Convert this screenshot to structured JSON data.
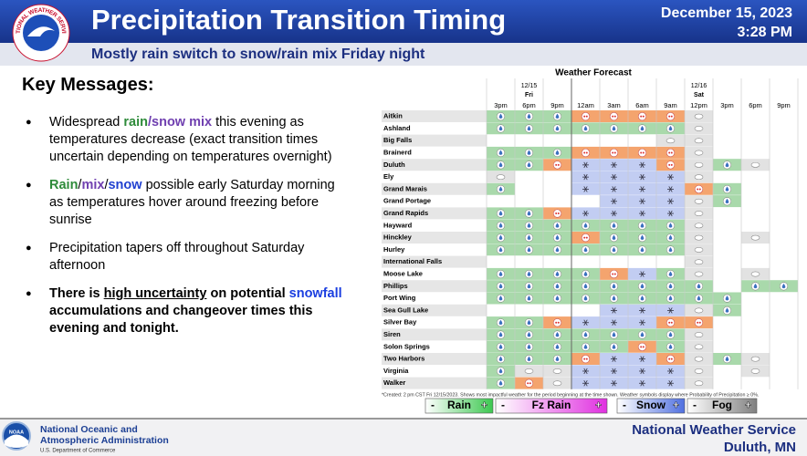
{
  "header": {
    "title": "Precipitation Transition Timing",
    "subtitle": "Mostly rain switch to snow/rain mix Friday night",
    "date": "December 15, 2023",
    "time": "3:28 PM",
    "logo_text": "NATIONAL WEATHER SERVICE"
  },
  "key_messages": {
    "heading": "Key Messages:",
    "bullet": "●",
    "items": [
      {
        "segments": [
          {
            "text": "Widespread "
          },
          {
            "text": "rain",
            "color": "#2e8b3a",
            "bold": true
          },
          {
            "text": "/snow mix",
            "color": "#7040b0",
            "bold": true
          },
          {
            "text": " this evening as temperatures decrease (exact transition times uncertain depending on temperatures overnight)"
          }
        ]
      },
      {
        "segments": [
          {
            "text": "Rain",
            "color": "#2e8b3a",
            "bold": true
          },
          {
            "text": "/"
          },
          {
            "text": "mix",
            "color": "#7040b0",
            "bold": true
          },
          {
            "text": "/"
          },
          {
            "text": "snow",
            "color": "#2040d0",
            "bold": true
          },
          {
            "text": " possible early Saturday morning as temperatures hover around freezing before sunrise"
          }
        ]
      },
      {
        "segments": [
          {
            "text": "Precipitation tapers off throughout Saturday afternoon"
          }
        ]
      },
      {
        "segments": [
          {
            "text": "There is ",
            "bold": true
          },
          {
            "text": "high uncertainty",
            "bold": true,
            "underline": true
          },
          {
            "text": " on potential ",
            "bold": true
          },
          {
            "text": "snowfall",
            "bold": true,
            "color": "#1a3ee0"
          },
          {
            "text": " accumulations and changeover times this evening and tonight.",
            "bold": true
          }
        ]
      }
    ]
  },
  "forecast": {
    "title": "Weather Forecast",
    "days": [
      {
        "date": "12/15",
        "day": "Fri"
      },
      {
        "date": "12/16",
        "day": "Sat"
      }
    ],
    "columns": [
      "3pm",
      "6pm",
      "9pm",
      "12am",
      "3am",
      "6am",
      "9am",
      "12pm",
      "3pm",
      "6pm",
      "9pm"
    ],
    "rows": [
      {
        "name": "Aitkin",
        "cells": [
          "Rain",
          "Rain",
          "Rain",
          "Fz Rain",
          "Fz Rain",
          "Fz Rain",
          "Fz Rain",
          "Fog",
          null,
          null,
          null
        ]
      },
      {
        "name": "Ashland",
        "cells": [
          "Rain",
          "Rain",
          "Rain",
          "Rain",
          "Rain",
          "Rain",
          "Rain",
          "Fog",
          null,
          null,
          null
        ]
      },
      {
        "name": "Big Falls",
        "cells": [
          null,
          null,
          null,
          null,
          null,
          null,
          "Fog",
          "Fog",
          null,
          null,
          null
        ]
      },
      {
        "name": "Brainerd",
        "cells": [
          "Rain",
          "Rain",
          "Rain",
          "Fz Rain",
          "Fz Rain",
          "Fz Rain",
          "Fz Rain",
          "Fog",
          null,
          null,
          null
        ]
      },
      {
        "name": "Duluth",
        "cells": [
          "Rain",
          "Rain",
          "Fz Rain",
          "Snow",
          "Snow",
          "Snow",
          "Fz Rain",
          "Fog",
          "Rain",
          "Fog",
          null
        ]
      },
      {
        "name": "Ely",
        "cells": [
          "Fog",
          null,
          null,
          "Snow",
          "Snow",
          "Snow",
          "Snow",
          "Fog",
          null,
          null,
          null
        ]
      },
      {
        "name": "Grand Marais",
        "cells": [
          "Rain",
          null,
          null,
          "Snow",
          "Snow",
          "Snow",
          "Snow",
          "Fz Rain",
          "Rain",
          null,
          null
        ]
      },
      {
        "name": "Grand Portage",
        "cells": [
          null,
          null,
          null,
          null,
          "Snow",
          "Snow",
          "Snow",
          "Fog",
          "Rain",
          null,
          null
        ]
      },
      {
        "name": "Grand Rapids",
        "cells": [
          "Rain",
          "Rain",
          "Fz Rain",
          "Snow",
          "Snow",
          "Snow",
          "Snow",
          "Fog",
          null,
          null,
          null
        ]
      },
      {
        "name": "Hayward",
        "cells": [
          "Rain",
          "Rain",
          "Rain",
          "Rain",
          "Rain",
          "Rain",
          "Rain",
          "Fog",
          null,
          null,
          null
        ]
      },
      {
        "name": "Hinckley",
        "cells": [
          "Rain",
          "Rain",
          "Rain",
          "Fz Rain",
          "Rain",
          "Rain",
          "Rain",
          "Fog",
          null,
          "Fog",
          null
        ]
      },
      {
        "name": "Hurley",
        "cells": [
          "Rain",
          "Rain",
          "Rain",
          "Rain",
          "Rain",
          "Rain",
          "Rain",
          "Fog",
          null,
          null,
          null
        ]
      },
      {
        "name": "International Falls",
        "cells": [
          null,
          null,
          null,
          null,
          null,
          null,
          null,
          "Fog",
          null,
          null,
          null
        ]
      },
      {
        "name": "Moose Lake",
        "cells": [
          "Rain",
          "Rain",
          "Rain",
          "Rain",
          "Fz Rain",
          "Snow",
          "Rain",
          "Fog",
          null,
          "Fog",
          null
        ]
      },
      {
        "name": "Phillips",
        "cells": [
          "Rain",
          "Rain",
          "Rain",
          "Rain",
          "Rain",
          "Rain",
          "Rain",
          "Rain",
          null,
          "Rain",
          "Rain"
        ]
      },
      {
        "name": "Port Wing",
        "cells": [
          "Rain",
          "Rain",
          "Rain",
          "Rain",
          "Rain",
          "Rain",
          "Rain",
          "Rain",
          "Rain",
          null,
          null
        ]
      },
      {
        "name": "Sea Gull Lake",
        "cells": [
          null,
          null,
          null,
          null,
          "Snow",
          "Snow",
          "Snow",
          "Fog",
          "Rain",
          null,
          null
        ]
      },
      {
        "name": "Silver Bay",
        "cells": [
          "Rain",
          "Rain",
          "Fz Rain",
          "Snow",
          "Snow",
          "Snow",
          "Fz Rain",
          "Fz Rain",
          null,
          null,
          null
        ]
      },
      {
        "name": "Siren",
        "cells": [
          "Rain",
          "Rain",
          "Rain",
          "Rain",
          "Rain",
          "Rain",
          "Rain",
          "Fog",
          null,
          null,
          null
        ]
      },
      {
        "name": "Solon Springs",
        "cells": [
          "Rain",
          "Rain",
          "Rain",
          "Rain",
          "Rain",
          "Fz Rain",
          "Rain",
          "Fog",
          null,
          null,
          null
        ]
      },
      {
        "name": "Two Harbors",
        "cells": [
          "Rain",
          "Rain",
          "Rain",
          "Fz Rain",
          "Snow",
          "Snow",
          "Fz Rain",
          "Fog",
          "Rain",
          "Fog",
          null
        ]
      },
      {
        "name": "Virginia",
        "cells": [
          "Rain",
          "Fog",
          "Fog",
          "Snow",
          "Snow",
          "Snow",
          "Snow",
          "Fog",
          null,
          "Fog",
          null
        ]
      },
      {
        "name": "Walker",
        "cells": [
          "Rain",
          "Fz Rain",
          "Fog",
          "Snow",
          "Snow",
          "Snow",
          "Snow",
          "Fog",
          null,
          null,
          null
        ]
      }
    ],
    "footnote": "*Created: 2 pm CST Fri 12/15/2023. Shows most impactful weather for the period beginning at the time shown. Weather symbols display where Probability of Precipitation ≥ 0%.",
    "legend": [
      {
        "low": "-",
        "name": "Rain",
        "high": "+",
        "color": "#3cc850",
        "cell_color": "#a9d9ab"
      },
      {
        "low": "-",
        "name": "Fz Rain",
        "high": "+",
        "color": "#e030e0",
        "cell_color": "#f4a46e"
      },
      {
        "low": "-",
        "name": "Snow",
        "high": "+",
        "color": "#5070e0",
        "cell_color": "#c2cdf2"
      },
      {
        "low": "-",
        "name": "Fog",
        "high": "+",
        "color": "#808080",
        "cell_color": "#e2e2e2"
      }
    ]
  },
  "footer": {
    "noaa": "NOAA",
    "agency": [
      "National Oceanic and",
      "Atmospheric Administration"
    ],
    "department": "U.S. Department of Commerce",
    "office": "National Weather Service",
    "location": "Duluth, MN"
  }
}
